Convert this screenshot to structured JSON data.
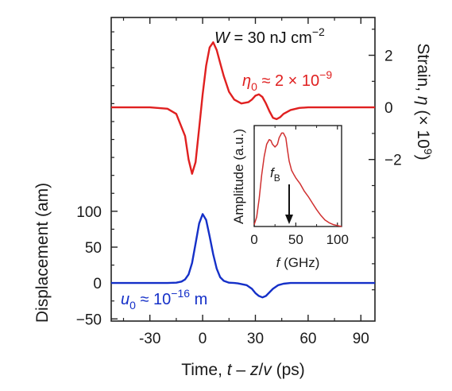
{
  "chart_data": [
    {
      "type": "line",
      "xlabel_parts": {
        "prefix": "Time, ",
        "var": "t",
        "mid": " – ",
        "var2": "z",
        "slash": "/",
        "var3": "v",
        "suffix": " (ps)"
      },
      "xticks": [
        "-30",
        "0",
        "30",
        "60",
        "90"
      ],
      "x_tick_values": [
        -30,
        0,
        30,
        60,
        90
      ],
      "xlim": [
        -52,
        98
      ],
      "left_axis": {
        "label": "Displacement (am)",
        "ticks": [
          "100",
          "50",
          "0",
          "−50"
        ],
        "tick_values": [
          100,
          50,
          0,
          -50
        ],
        "ylim": [
          -53,
          370
        ]
      },
      "right_axis": {
        "label_parts": {
          "prefix": "Strain, ",
          "var": "η",
          "suffix": " (× 10",
          "exp": "9",
          "end": ")"
        },
        "ticks": [
          "2",
          "0",
          "−2"
        ],
        "tick_values": [
          2,
          0,
          -2
        ],
        "ylim": [
          -8.2,
          3.45
        ]
      },
      "series": [
        {
          "axis": "right",
          "color": "#e02020",
          "x": [
            -52,
            -30,
            -20,
            -15,
            -10,
            -8,
            -6,
            -4,
            -2,
            0,
            2,
            4,
            6,
            8,
            10,
            12,
            15,
            18,
            22,
            26,
            28,
            30,
            32,
            34,
            36,
            38,
            40,
            42,
            44,
            46,
            50,
            55,
            60,
            98
          ],
          "y": [
            0,
            0,
            -0.05,
            -0.25,
            -1.1,
            -2.0,
            -2.55,
            -2.1,
            -0.8,
            0.5,
            1.6,
            2.3,
            2.5,
            2.2,
            1.7,
            1.2,
            0.6,
            0.3,
            0.15,
            0.2,
            0.3,
            0.45,
            0.5,
            0.4,
            0.15,
            -0.15,
            -0.4,
            -0.45,
            -0.38,
            -0.25,
            -0.1,
            -0.02,
            0,
            0
          ]
        },
        {
          "axis": "left",
          "color": "#1530c8",
          "x": [
            -52,
            -20,
            -15,
            -12,
            -10,
            -8,
            -6,
            -4,
            -2,
            0,
            2,
            4,
            6,
            8,
            10,
            12,
            15,
            18,
            20,
            25,
            28,
            30,
            32,
            34,
            36,
            38,
            40,
            43,
            46,
            50,
            55,
            98
          ],
          "y": [
            0,
            0,
            0.5,
            2,
            5,
            12,
            28,
            55,
            83,
            96,
            88,
            65,
            40,
            20,
            8,
            3,
            0.5,
            0,
            -0.5,
            -3,
            -8,
            -14,
            -18,
            -20,
            -18,
            -13,
            -8,
            -3,
            -1,
            0,
            0,
            0
          ]
        }
      ],
      "annotations": {
        "fluence": {
          "prefix": "W",
          "value": " = 30 nJ cm",
          "exp": "−2"
        },
        "eta0": {
          "var": "η",
          "sub": "0",
          "value": " ≈ 2 × 10",
          "exp": "−9"
        },
        "u0": {
          "var": "u",
          "sub": "0",
          "value": " ≈ 10",
          "exp": "−16",
          "unit": " m"
        }
      }
    },
    {
      "type": "line",
      "role": "inset",
      "ylabel": "Amplitude (a.u.)",
      "xlabel_parts": {
        "var": "f",
        "suffix": " (GHz)"
      },
      "xticks": [
        "0",
        "50",
        "100"
      ],
      "x_tick_values": [
        0,
        50,
        100
      ],
      "xlim": [
        0,
        105
      ],
      "ylim": [
        0,
        1.08
      ],
      "marker_label": {
        "var": "f",
        "sub": "B"
      },
      "marker_x": 42,
      "series": [
        {
          "color": "#d03030",
          "x": [
            0,
            3,
            6,
            9,
            12,
            15,
            18,
            20,
            22,
            25,
            28,
            30,
            33,
            35,
            38,
            40,
            42,
            45,
            48,
            50,
            55,
            60,
            65,
            70,
            75,
            80,
            85,
            90,
            95,
            100,
            105
          ],
          "y": [
            0.02,
            0.1,
            0.3,
            0.55,
            0.75,
            0.88,
            0.93,
            0.92,
            0.88,
            0.85,
            0.88,
            0.95,
            1.0,
            1.0,
            0.95,
            0.82,
            0.7,
            0.6,
            0.55,
            0.52,
            0.46,
            0.38,
            0.32,
            0.25,
            0.18,
            0.12,
            0.07,
            0.04,
            0.02,
            0.01,
            0.0
          ]
        }
      ]
    }
  ]
}
